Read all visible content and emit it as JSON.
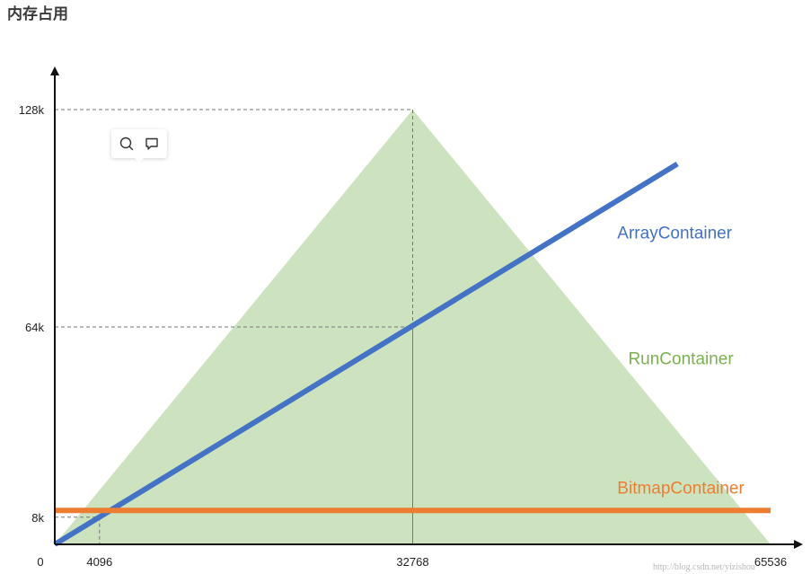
{
  "page_title": "内存占用",
  "toolbar": {
    "search_icon": "search-icon",
    "comment_icon": "comment-icon"
  },
  "watermark": "http://blog.csdn.net/yizishou",
  "chart_data": {
    "type": "line",
    "title": "",
    "xlabel": "",
    "ylabel": "",
    "xlim": [
      0,
      65536
    ],
    "ylim": [
      0,
      128
    ],
    "x_ticks": [
      {
        "value": 0,
        "label": "0"
      },
      {
        "value": 4096,
        "label": "4096"
      },
      {
        "value": 32768,
        "label": "32768"
      },
      {
        "value": 65536,
        "label": "65536"
      }
    ],
    "y_ticks": [
      {
        "value": 8,
        "label": "8k"
      },
      {
        "value": 64,
        "label": "64k"
      },
      {
        "value": 128,
        "label": "128k"
      }
    ],
    "guides": [
      {
        "x": 4096,
        "y": 8
      },
      {
        "x": 32768,
        "y": 64
      },
      {
        "x": 32768,
        "y": 128
      }
    ],
    "series": [
      {
        "name": "RunContainer",
        "kind": "area",
        "color": "#cde3c0",
        "label_color": "#7ab150",
        "points": [
          [
            0,
            0
          ],
          [
            32768,
            128
          ],
          [
            65536,
            0
          ]
        ],
        "label_at": [
          52500,
          53
        ]
      },
      {
        "name": "ArrayContainer",
        "kind": "line",
        "color": "#4472c4",
        "points": [
          [
            0,
            0
          ],
          [
            57000,
            112
          ]
        ],
        "label_at": [
          51500,
          90
        ]
      },
      {
        "name": "BitmapContainer",
        "kind": "line",
        "color": "#ed7d31",
        "points": [
          [
            0,
            10
          ],
          [
            65536,
            10
          ]
        ],
        "label_at": [
          51500,
          15
        ]
      }
    ],
    "grid": false,
    "legend": "none"
  }
}
